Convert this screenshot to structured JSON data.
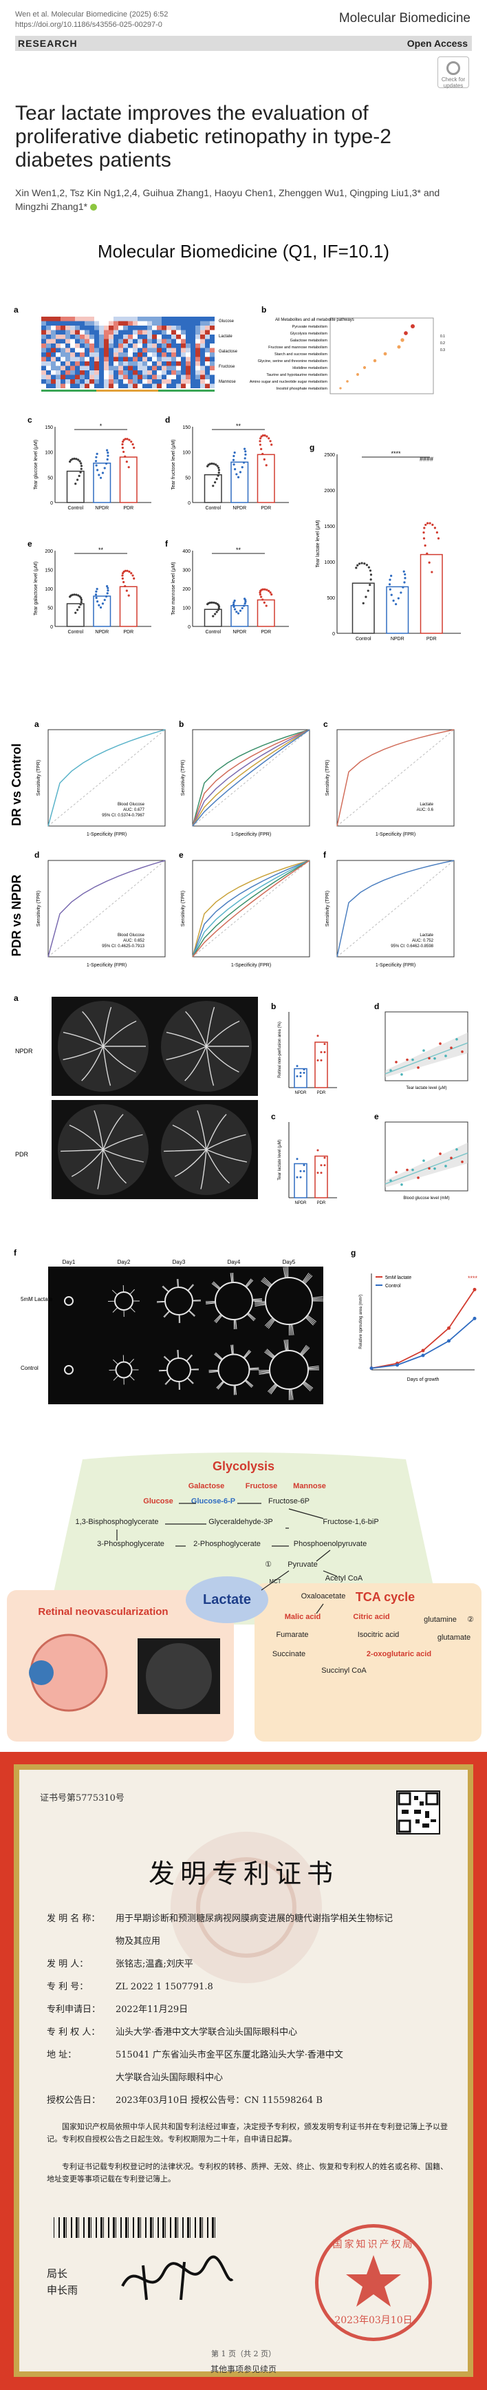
{
  "paper": {
    "journal_ref": "Wen et al. Molecular Biomedicine      (2025) 6:52",
    "doi": "https://doi.org/10.1186/s43556-025-00297-0",
    "journal_name": "Molecular Biomedicine",
    "section": "RESEARCH",
    "open_access": "Open Access",
    "check_badge": "Check for updates",
    "title": "Tear lactate improves the evaluation of proliferative diabetic retinopathy in type-2 diabetes patients",
    "authors": "Xin Wen1,2, Tsz Kin Ng1,2,4, Guihua Zhang1, Haoyu Chen1, Zhenggen Wu1, Qingping Liu1,3* and Mingzhi Zhang1*",
    "banner": "Molecular Biomedicine  (Q1, IF=10.1)"
  },
  "colors": {
    "control": "#3a3a3a",
    "npdr": "#2f6cc1",
    "pdr": "#d23b2f",
    "lactate_ellipse": "#b9cdea",
    "pathway_bg": "#e8f1d8",
    "retinal_bg": "#fbe1cf",
    "tca_bg": "#fbe6c8",
    "cert_border": "#c9a64b",
    "cert_red": "#d93a26"
  },
  "figure1": {
    "panel_labels": [
      "a",
      "b",
      "c",
      "d",
      "e",
      "f",
      "g"
    ],
    "heat_legend": [
      "Glucose",
      "Lactate",
      "Galactose",
      "Fructose",
      "Mannose"
    ],
    "enrich_title": "All Metabolites and all metabolite pathways",
    "enrich_terms": [
      "Pyruvate metabolism",
      "Glycolysis metabolism",
      "Galactose metabolism",
      "Fructose and mannose metabolism",
      "Starch and sucrose metabolism",
      "Glycine, serine and threonine metabolism",
      "Histidine metabolism",
      "Taurine and hypotaurine metabolism",
      "Amino sugar and nucleotide sugar metabolism",
      "Inositol phosphate metabolism"
    ],
    "enrich_legend": [
      "0.1",
      "0.2",
      "0.3"
    ],
    "groups": [
      "Control",
      "NPDR",
      "PDR"
    ],
    "charts": [
      {
        "id": "c",
        "ylabel": "Tear glucose level (μM)",
        "sig": "*",
        "ticks": [
          "0",
          "50",
          "100",
          "150"
        ],
        "means": [
          62,
          78,
          90
        ],
        "max": 150
      },
      {
        "id": "d",
        "ylabel": "Tear fructose level (μM)",
        "sig": "**",
        "ticks": [
          "0",
          "50",
          "100",
          "150"
        ],
        "means": [
          55,
          80,
          95
        ],
        "max": 150
      },
      {
        "id": "e",
        "ylabel": "Tear galactose level (μM)",
        "sig": "**",
        "ticks": [
          "0",
          "50",
          "100",
          "150",
          "200"
        ],
        "means": [
          60,
          80,
          105
        ],
        "max": 200
      },
      {
        "id": "f",
        "ylabel": "Tear mannose level (μM)",
        "sig": "**",
        "ticks": [
          "0",
          "100",
          "200",
          "300",
          "400"
        ],
        "means": [
          90,
          110,
          140
        ],
        "max": 400
      }
    ],
    "chart_g": {
      "id": "g",
      "ylabel": "Tear lactate level (μM)",
      "sig": "****",
      "sig2": "####",
      "ticks": [
        "0",
        "500",
        "1000",
        "1500",
        "2000",
        "2500"
      ],
      "means": [
        700,
        650,
        1100
      ],
      "max": 2500
    }
  },
  "figure2": {
    "row_labels": [
      "DR vs Control",
      "PDR vs NPDR"
    ],
    "panel_labels": [
      "a",
      "b",
      "c",
      "d",
      "e",
      "f"
    ],
    "xlabel": "1-Specificity (FPR)",
    "ylabel": "Sensitivity (TPR)",
    "legend_a": [
      "Blood Glucose",
      "AUC: 0.677",
      "95% CI: 0.5374-0.7967"
    ],
    "legend_c": [
      "Lactate",
      "AUC: 0.6"
    ],
    "legend_d": [
      "Blood Glucose",
      "AUC: 0.652",
      "95% CI: 0.4625-0.7913"
    ],
    "legend_f": [
      "Lactate",
      "AUC: 0.752",
      "95% CI: 0.6462-0.8598"
    ]
  },
  "figure3": {
    "panel_labels": [
      "a",
      "b",
      "c",
      "d",
      "e"
    ],
    "row_labels": [
      "NPDR",
      "PDR"
    ],
    "b_ylabel": "Retinal non-perfusion area (%)",
    "c_ylabel": "Tear lactate level (μM)",
    "d_xlabel": "Tear lactate level (μM)",
    "e_xlabel": "Blood glucose level (mM)",
    "groups": [
      "NPDR",
      "PDR"
    ]
  },
  "figure4": {
    "panel_labels": [
      "f",
      "g"
    ],
    "days": [
      "Day1",
      "Day2",
      "Day3",
      "Day4",
      "Day5"
    ],
    "rows": [
      "5mM Lactate",
      "Control"
    ],
    "legend": [
      "5mM lactate",
      "Control"
    ],
    "xlabel": "Days of growth",
    "ylabel": "Relative sprouting area (mm²)",
    "sig": "****",
    "chart_data": {
      "type": "line",
      "x": [
        1,
        2,
        3,
        4,
        5
      ],
      "series": [
        {
          "name": "5mM lactate",
          "values": [
            0.1,
            0.4,
            1.2,
            2.6,
            5.0
          ]
        },
        {
          "name": "Control",
          "values": [
            0.1,
            0.3,
            0.9,
            1.8,
            3.2
          ]
        }
      ]
    }
  },
  "pathway": {
    "title_glycolysis": "Glycolysis",
    "galactose": "Galactose",
    "fructose": "Fructose",
    "mannose": "Mannose",
    "glucose": "Glucose",
    "g6p": "Glucose-6-P",
    "f6p": "Fructose-6P",
    "bpg": "1,3-Bisphosphoglycerate",
    "g3p": "Glyceraldehyde-3P",
    "fbp": "Fructose-1,6-biP",
    "pg3": "3-Phosphoglycerate",
    "pg2": "2-Phosphoglycerate",
    "pep": "Phosphoenolpyruvate",
    "pyruvate": "Pyruvate",
    "lactate": "Lactate",
    "acetyl": "Acetyl CoA",
    "oxaloacetate": "Oxaloacetate",
    "malic": "Malic acid",
    "citric": "Citric acid",
    "glutamine": "glutamine",
    "glutamate": "glutamate",
    "fumarate": "Fumarate",
    "isocitric": "Isocitric acid",
    "succinate": "Succinate",
    "oxoglutarate": "2-oxoglutaric acid",
    "succinyl": "Succinyl CoA",
    "retinal": "Retinal neovascularization",
    "tca": "TCA cycle",
    "mark1": "①",
    "mark2": "②",
    "mct": "MCT"
  },
  "certificate": {
    "number": "证书号第5775310号",
    "title": "发明专利证书",
    "rows": [
      {
        "k": "发 明 名 称：",
        "v": "用于早期诊断和预测糖尿病视网膜病变进展的糖代谢指学相关生物标记"
      },
      {
        "k": "",
        "v": "物及其应用"
      },
      {
        "k": "发 明 人：",
        "v": "张铭志;温鑫;刘庆平"
      },
      {
        "k": "专 利 号：",
        "v": "ZL 2022 1 1507791.8"
      },
      {
        "k": "专利申请日：",
        "v": "2022年11月29日"
      },
      {
        "k": "专 利 权 人：",
        "v": "汕头大学·香港中文大学联合汕头国际眼科中心"
      },
      {
        "k": "地 址：",
        "v": "515041 广东省汕头市金平区东厦北路汕头大学·香港中文"
      },
      {
        "k": "",
        "v": "大学联合汕头国际眼科中心"
      },
      {
        "k": "授权公告日：",
        "v": "2023年03月10日     授权公告号：CN 115598264 B"
      }
    ],
    "body": "国家知识产权局依照中华人民共和国专利法经过审查，决定授予专利权，颁发发明专利证书并在专利登记簿上予以登记。专利权自授权公告之日起生效。专利权期限为二十年，自申请日起算。",
    "body2": "专利证书记载专利权登记时的法律状况。专利权的转移、质押、无效、终止、恢复和专利权人的姓名或名称、国籍、地址变更等事项记载在专利登记簿上。",
    "sign1": "局长",
    "sign2": "申长雨",
    "seal_date": "2023年03月10日",
    "seal_text": "国家知识产权局",
    "page": "第 1 页（共 2 页）",
    "footer": "其他事项参见续页"
  }
}
